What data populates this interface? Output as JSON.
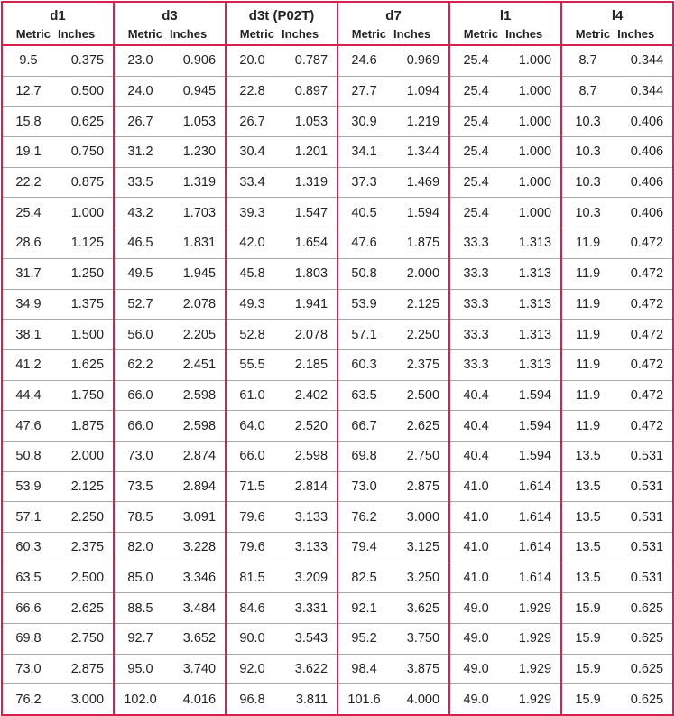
{
  "colors": {
    "border": "#d6204e",
    "row_divider": "#aaaaaa"
  },
  "groups": [
    "d1",
    "d3",
    "d3t (P02T)",
    "d7",
    "l1",
    "l4"
  ],
  "sub_labels": {
    "metric": "Metric",
    "inches": "Inches"
  },
  "rows": [
    [
      "9.5",
      "0.375",
      "23.0",
      "0.906",
      "20.0",
      "0.787",
      "24.6",
      "0.969",
      "25.4",
      "1.000",
      "8.7",
      "0.344"
    ],
    [
      "12.7",
      "0.500",
      "24.0",
      "0.945",
      "22.8",
      "0.897",
      "27.7",
      "1.094",
      "25.4",
      "1.000",
      "8.7",
      "0.344"
    ],
    [
      "15.8",
      "0.625",
      "26.7",
      "1.053",
      "26.7",
      "1.053",
      "30.9",
      "1.219",
      "25.4",
      "1.000",
      "10.3",
      "0.406"
    ],
    [
      "19.1",
      "0.750",
      "31.2",
      "1.230",
      "30.4",
      "1.201",
      "34.1",
      "1.344",
      "25.4",
      "1.000",
      "10.3",
      "0.406"
    ],
    [
      "22.2",
      "0.875",
      "33.5",
      "1.319",
      "33.4",
      "1.319",
      "37.3",
      "1.469",
      "25.4",
      "1.000",
      "10.3",
      "0.406"
    ],
    [
      "25.4",
      "1.000",
      "43.2",
      "1.703",
      "39.3",
      "1.547",
      "40.5",
      "1.594",
      "25.4",
      "1.000",
      "10.3",
      "0.406"
    ],
    [
      "28.6",
      "1.125",
      "46.5",
      "1.831",
      "42.0",
      "1.654",
      "47.6",
      "1.875",
      "33.3",
      "1.313",
      "11.9",
      "0.472"
    ],
    [
      "31.7",
      "1.250",
      "49.5",
      "1.945",
      "45.8",
      "1.803",
      "50.8",
      "2.000",
      "33.3",
      "1.313",
      "11.9",
      "0.472"
    ],
    [
      "34.9",
      "1.375",
      "52.7",
      "2.078",
      "49.3",
      "1.941",
      "53.9",
      "2.125",
      "33.3",
      "1.313",
      "11.9",
      "0.472"
    ],
    [
      "38.1",
      "1.500",
      "56.0",
      "2.205",
      "52.8",
      "2.078",
      "57.1",
      "2.250",
      "33.3",
      "1.313",
      "11.9",
      "0.472"
    ],
    [
      "41.2",
      "1.625",
      "62.2",
      "2.451",
      "55.5",
      "2.185",
      "60.3",
      "2.375",
      "33.3",
      "1.313",
      "11.9",
      "0.472"
    ],
    [
      "44.4",
      "1.750",
      "66.0",
      "2.598",
      "61.0",
      "2.402",
      "63.5",
      "2.500",
      "40.4",
      "1.594",
      "11.9",
      "0.472"
    ],
    [
      "47.6",
      "1.875",
      "66.0",
      "2.598",
      "64.0",
      "2.520",
      "66.7",
      "2.625",
      "40.4",
      "1.594",
      "11.9",
      "0.472"
    ],
    [
      "50.8",
      "2.000",
      "73.0",
      "2.874",
      "66.0",
      "2.598",
      "69.8",
      "2.750",
      "40.4",
      "1.594",
      "13.5",
      "0.531"
    ],
    [
      "53.9",
      "2.125",
      "73.5",
      "2.894",
      "71.5",
      "2.814",
      "73.0",
      "2.875",
      "41.0",
      "1.614",
      "13.5",
      "0.531"
    ],
    [
      "57.1",
      "2.250",
      "78.5",
      "3.091",
      "79.6",
      "3.133",
      "76.2",
      "3.000",
      "41.0",
      "1.614",
      "13.5",
      "0.531"
    ],
    [
      "60.3",
      "2.375",
      "82.0",
      "3.228",
      "79.6",
      "3.133",
      "79.4",
      "3.125",
      "41.0",
      "1.614",
      "13.5",
      "0.531"
    ],
    [
      "63.5",
      "2.500",
      "85.0",
      "3.346",
      "81.5",
      "3.209",
      "82.5",
      "3.250",
      "41.0",
      "1.614",
      "13.5",
      "0.531"
    ],
    [
      "66.6",
      "2.625",
      "88.5",
      "3.484",
      "84.6",
      "3.331",
      "92.1",
      "3.625",
      "49.0",
      "1.929",
      "15.9",
      "0.625"
    ],
    [
      "69.8",
      "2.750",
      "92.7",
      "3.652",
      "90.0",
      "3.543",
      "95.2",
      "3.750",
      "49.0",
      "1.929",
      "15.9",
      "0.625"
    ],
    [
      "73.0",
      "2.875",
      "95.0",
      "3.740",
      "92.0",
      "3.622",
      "98.4",
      "3.875",
      "49.0",
      "1.929",
      "15.9",
      "0.625"
    ],
    [
      "76.2",
      "3.000",
      "102.0",
      "4.016",
      "96.8",
      "3.811",
      "101.6",
      "4.000",
      "49.0",
      "1.929",
      "15.9",
      "0.625"
    ]
  ]
}
